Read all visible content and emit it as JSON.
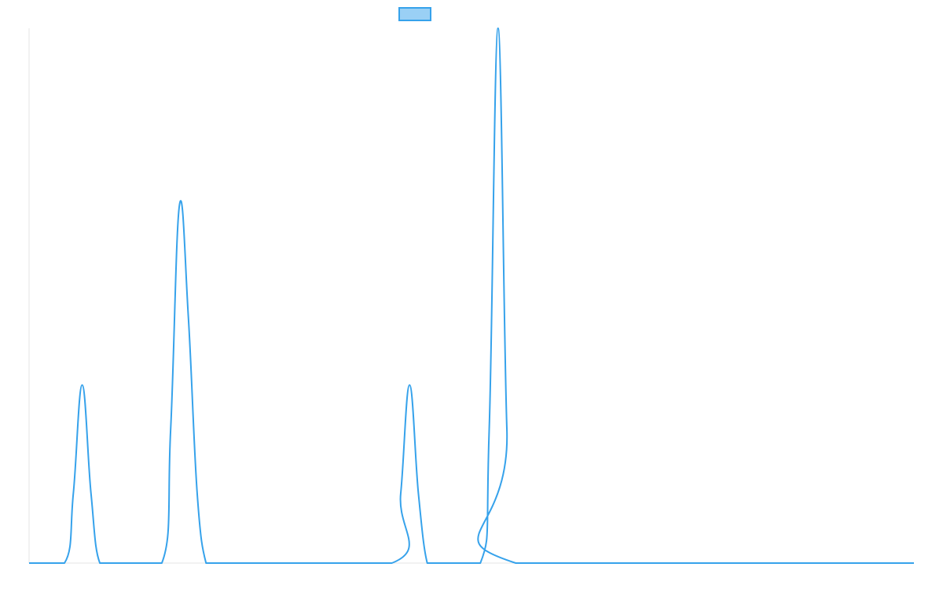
{
  "chart_data": {
    "type": "line",
    "title": "",
    "xlabel": "",
    "ylabel": "",
    "grid": false,
    "legend": "top-center",
    "xlim": [
      0,
      100
    ],
    "ylim": [
      0,
      1
    ],
    "series": [
      {
        "color": "#36a2eb",
        "fill": "#9ad0f5",
        "x": [
          0,
          4,
          5,
          6,
          7,
          8,
          10,
          15,
          16,
          17,
          18,
          19,
          20,
          21,
          22,
          41,
          42,
          43,
          44,
          45,
          46,
          51,
          52,
          53,
          54,
          55,
          100
        ],
        "y": [
          0,
          0,
          0.13,
          0.333,
          0.13,
          0,
          0,
          0,
          0.25,
          0.67,
          0.46,
          0.13,
          0,
          0,
          0,
          0,
          0.13,
          0.333,
          0.13,
          0,
          0,
          0,
          0.25,
          1.0,
          0.25,
          0,
          0
        ]
      }
    ]
  }
}
